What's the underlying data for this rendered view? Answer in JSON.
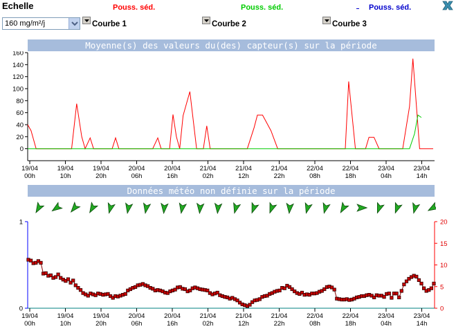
{
  "header": {
    "echelle_label": "Echelle",
    "scale_select_value": "160 mg/m²/j"
  },
  "curves": [
    {
      "title": "Pouss. séd.",
      "label": "Courbe 1",
      "color": "#ff0000"
    },
    {
      "title": "Pouss. séd.",
      "label": "Courbe 2",
      "color": "#00cc00"
    },
    {
      "title": "Pouss. séd.",
      "label": "Courbe 3",
      "color": "#0000cc"
    }
  ],
  "chart_banner": "Moyenne(s) des valeurs du(des) capteur(s) sur la période",
  "meteo_banner": "Données météo non définie sur la période",
  "x_ticks_top": [
    {
      "date": "19/04",
      "time": "00h"
    },
    {
      "date": "19/04",
      "time": "10h"
    },
    {
      "date": "19/04",
      "time": "20h"
    },
    {
      "date": "20/04",
      "time": "06h"
    },
    {
      "date": "20/04",
      "time": "16h"
    },
    {
      "date": "21/04",
      "time": "02h"
    },
    {
      "date": "21/04",
      "time": "12h"
    },
    {
      "date": "21/04",
      "time": "22h"
    },
    {
      "date": "22/04",
      "time": "08h"
    },
    {
      "date": "22/04",
      "time": "18h"
    },
    {
      "date": "23/04",
      "time": "04h"
    },
    {
      "date": "23/04",
      "time": "14h"
    }
  ],
  "x_ticks_bottom": [
    {
      "date": "19/04",
      "time": "00h"
    },
    {
      "date": "19/04",
      "time": "10h"
    },
    {
      "date": "19/04",
      "time": "20h"
    },
    {
      "date": "20/04",
      "time": "06h"
    },
    {
      "date": "20/04",
      "time": "16h"
    },
    {
      "date": "21/04",
      "time": "02h"
    },
    {
      "date": "21/04",
      "time": "12h"
    },
    {
      "date": "21/04",
      "time": "22h"
    },
    {
      "date": "22/04",
      "time": "08h"
    },
    {
      "date": "22/04",
      "time": "18h"
    },
    {
      "date": "23/04",
      "time": "04h"
    },
    {
      "date": "23/04",
      "time": "14h"
    }
  ],
  "wind_directions_deg": [
    210,
    235,
    220,
    210,
    195,
    190,
    190,
    185,
    190,
    185,
    185,
    195,
    200,
    200,
    185,
    195,
    195,
    210,
    90,
    200,
    200,
    195,
    240,
    255,
    240,
    250,
    240,
    250
  ],
  "chart_data": [
    {
      "type": "line",
      "title": "Moyenne(s) des valeurs du(des) capteur(s) sur la période",
      "ylim": [
        -20,
        160
      ],
      "yticks": [
        0,
        20,
        40,
        60,
        80,
        100,
        120,
        140,
        160
      ],
      "x_unit": "hours since 19/04 00h",
      "xlim": [
        0,
        115
      ],
      "grid": false,
      "series": [
        {
          "name": "Pouss. séd.",
          "color": "#ff0000",
          "points": [
            [
              0,
              40
            ],
            [
              1,
              30
            ],
            [
              2.5,
              0
            ],
            [
              13,
              0
            ],
            [
              14.5,
              75
            ],
            [
              16,
              20
            ],
            [
              17,
              0
            ],
            [
              18.5,
              18
            ],
            [
              19.5,
              0
            ],
            [
              25,
              0
            ],
            [
              26,
              18
            ],
            [
              27,
              0
            ],
            [
              37,
              0
            ],
            [
              38.5,
              18
            ],
            [
              39.5,
              0
            ],
            [
              42,
              0
            ],
            [
              43,
              57
            ],
            [
              44,
              20
            ],
            [
              45,
              0
            ],
            [
              46,
              55
            ],
            [
              48,
              95
            ],
            [
              50,
              0
            ],
            [
              52,
              0
            ],
            [
              53,
              38
            ],
            [
              54,
              0
            ],
            [
              65,
              0
            ],
            [
              67,
              35
            ],
            [
              68,
              56
            ],
            [
              69.5,
              56
            ],
            [
              72,
              30
            ],
            [
              74,
              0
            ],
            [
              94,
              0
            ],
            [
              95,
              112
            ],
            [
              97,
              0
            ],
            [
              100,
              0
            ],
            [
              101,
              19
            ],
            [
              102.5,
              19
            ],
            [
              104,
              0
            ],
            [
              111,
              0
            ],
            [
              113,
              70
            ],
            [
              114,
              150
            ],
            [
              116,
              0
            ],
            [
              120,
              0
            ]
          ]
        },
        {
          "name": "Pouss. séd.",
          "color": "#00cc00",
          "points": [
            [
              0,
              0
            ],
            [
              113,
              0
            ],
            [
              114.5,
              25
            ],
            [
              115.5,
              56
            ],
            [
              116.5,
              52
            ]
          ]
        }
      ]
    },
    {
      "type": "line",
      "title": "Données météo non définie sur la période",
      "ylim_left": [
        0,
        1
      ],
      "yticks_left": [
        0,
        1
      ],
      "ylim_right": [
        0,
        20
      ],
      "yticks_right": [
        0,
        5,
        10,
        15,
        20
      ],
      "series": [
        {
          "name": "",
          "color": "#8b0000",
          "values": [
            11.2,
            11,
            10.4,
            10.5,
            10.9,
            10.5,
            8,
            8.1,
            7.5,
            7.6,
            7,
            7.2,
            7.8,
            7,
            6.6,
            6.3,
            6.7,
            5.9,
            6.4,
            5.3,
            4.7,
            4.2,
            3.5,
            3.2,
            2.9,
            3.4,
            3.2,
            3.0,
            3.4,
            3.3,
            3.1,
            3.2,
            3.3,
            2.8,
            2.4,
            2.8,
            2.7,
            2.9,
            3.1,
            3.3,
            4.1,
            4.4,
            4.7,
            4.9,
            5.3,
            5.4,
            5.6,
            5.3,
            5.1,
            4.7,
            4.5,
            4.1,
            4.2,
            4.1,
            3.9,
            3.6,
            3.5,
            3.9,
            4.1,
            4.3,
            4.8,
            4.9,
            4.5,
            4.4,
            3.9,
            4.1,
            4.6,
            4.8,
            4.6,
            4.4,
            4.3,
            4.2,
            4.1,
            3.5,
            3.2,
            3.4,
            3.6,
            3.0,
            2.8,
            2.6,
            2.5,
            2.2,
            2.4,
            2.1,
            1.8,
            1.3,
            0.9,
            0.7,
            0.5,
            0.8,
            1.4,
            1.8,
            1.9,
            2.1,
            2.6,
            2.8,
            2.9,
            3.3,
            3.5,
            3.8,
            4.0,
            4.1,
            4.7,
            4.6,
            5.2,
            4.9,
            4.4,
            3.9,
            3.5,
            3.3,
            3.6,
            3.1,
            3.2,
            3.1,
            3.4,
            3.4,
            3.5,
            3.8,
            4.0,
            4.4,
            4.9,
            5.0,
            4.8,
            4.3,
            2.2,
            2.1,
            2.0,
            2.0,
            2.1,
            1.9,
            2.0,
            2.2,
            2.5,
            2.6,
            2.8,
            2.8,
            3.0,
            3.1,
            2.9,
            2.5,
            3.0,
            2.9,
            2.9,
            2.6,
            3.3,
            3.4,
            2.4,
            3.4,
            3.4,
            2.5,
            4.0,
            5.5,
            6.2,
            6.8,
            7.2,
            7.5,
            7.3,
            6.5,
            5.7,
            4.6,
            4.0,
            4.2,
            4.6,
            5.7
          ]
        }
      ]
    }
  ]
}
